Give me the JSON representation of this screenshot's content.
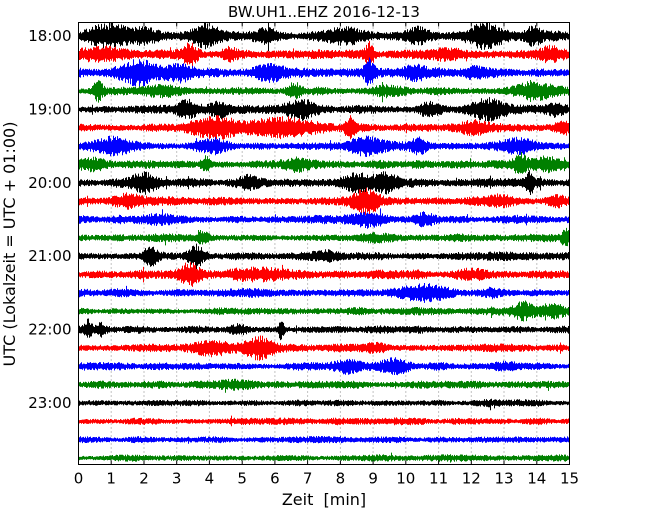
{
  "window": {
    "title": "BW.UH1..EHZ 2016-12-13"
  },
  "chart_data": {
    "type": "line",
    "subtype": "seismogram-helicorder-dayplot",
    "title": "BW.UH1..EHZ 2016-12-13",
    "xlabel": "Zeit  [min]",
    "ylabel": "UTC (Lokalzeit = UTC + 01:00)",
    "station": "BW.UH1..EHZ",
    "date": "2016-12-13",
    "xlim": [
      0,
      15
    ],
    "minutes_per_line": 15,
    "x_ticks": [
      0,
      1,
      2,
      3,
      4,
      5,
      6,
      7,
      8,
      9,
      10,
      11,
      12,
      13,
      14,
      15
    ],
    "y_tick_labels": [
      "18:00",
      "19:00",
      "20:00",
      "21:00",
      "22:00",
      "23:00"
    ],
    "grid": {
      "vertical_minute_lines": "dotted",
      "legend": "none"
    },
    "trace_color_cycle": [
      "#000000",
      "#ff0000",
      "#0000ff",
      "#008000"
    ],
    "events_format": "[minute, relative_amplitude, width_minutes]",
    "traces": [
      {
        "time": "18:00",
        "color": "#000000",
        "base_amplitude": 1.05,
        "events": [
          [
            0.9,
            1.4,
            0.5
          ],
          [
            2.1,
            0.9,
            0.3
          ],
          [
            3.9,
            1.7,
            0.3
          ],
          [
            5.7,
            1.0,
            0.25
          ],
          [
            8.2,
            1.0,
            0.4
          ],
          [
            10.4,
            0.9,
            0.25
          ],
          [
            12.4,
            1.5,
            0.4
          ],
          [
            13.9,
            1.1,
            0.2
          ]
        ]
      },
      {
        "time": "18:15",
        "color": "#ff0000",
        "base_amplitude": 1.0,
        "events": [
          [
            0.6,
            0.9,
            0.5
          ],
          [
            3.4,
            1.5,
            0.18
          ],
          [
            4.6,
            0.9,
            0.15
          ],
          [
            8.9,
            1.8,
            0.1
          ],
          [
            11.2,
            0.8,
            0.3
          ],
          [
            14.4,
            0.9,
            0.25
          ]
        ]
      },
      {
        "time": "18:30",
        "color": "#0000ff",
        "base_amplitude": 1.0,
        "events": [
          [
            1.8,
            1.6,
            0.5
          ],
          [
            3.1,
            0.9,
            0.25
          ],
          [
            5.8,
            1.0,
            0.3
          ],
          [
            8.9,
            1.9,
            0.12
          ],
          [
            10.3,
            1.0,
            0.25
          ],
          [
            12.1,
            0.7,
            0.3
          ]
        ]
      },
      {
        "time": "18:45",
        "color": "#008000",
        "base_amplitude": 0.9,
        "events": [
          [
            0.6,
            1.7,
            0.12
          ],
          [
            2.6,
            0.7,
            0.4
          ],
          [
            6.6,
            1.3,
            0.15
          ],
          [
            9.3,
            0.7,
            0.3
          ],
          [
            13.9,
            1.1,
            0.45
          ]
        ]
      },
      {
        "time": "19:00",
        "color": "#000000",
        "base_amplitude": 0.95,
        "events": [
          [
            3.3,
            1.3,
            0.2
          ],
          [
            4.3,
            1.2,
            0.2
          ],
          [
            6.8,
            1.2,
            0.3
          ],
          [
            10.7,
            1.0,
            0.25
          ],
          [
            12.5,
            1.6,
            0.4
          ],
          [
            14.6,
            0.8,
            0.2
          ]
        ]
      },
      {
        "time": "19:15",
        "color": "#ff0000",
        "base_amplitude": 1.0,
        "events": [
          [
            4.2,
            1.6,
            0.5
          ],
          [
            6.3,
            1.5,
            0.6
          ],
          [
            8.3,
            1.4,
            0.12
          ],
          [
            12.1,
            0.7,
            0.3
          ],
          [
            14.8,
            1.0,
            0.15
          ]
        ]
      },
      {
        "time": "19:30",
        "color": "#0000ff",
        "base_amplitude": 0.95,
        "events": [
          [
            1.0,
            1.1,
            0.5
          ],
          [
            4.1,
            0.8,
            0.3
          ],
          [
            8.8,
            1.5,
            0.4
          ],
          [
            10.4,
            1.0,
            0.18
          ],
          [
            13.5,
            0.8,
            0.4
          ]
        ]
      },
      {
        "time": "19:45",
        "color": "#008000",
        "base_amplitude": 0.9,
        "events": [
          [
            0.5,
            0.9,
            0.3
          ],
          [
            3.9,
            1.2,
            0.1
          ],
          [
            6.7,
            1.0,
            0.25
          ],
          [
            13.5,
            1.5,
            0.15
          ],
          [
            14.3,
            0.9,
            0.3
          ]
        ]
      },
      {
        "time": "20:00",
        "color": "#000000",
        "base_amplitude": 0.95,
        "events": [
          [
            2.0,
            1.5,
            0.3
          ],
          [
            5.2,
            0.8,
            0.2
          ],
          [
            8.5,
            1.4,
            0.35
          ],
          [
            9.4,
            1.2,
            0.25
          ],
          [
            13.8,
            1.7,
            0.08
          ]
        ]
      },
      {
        "time": "20:15",
        "color": "#ff0000",
        "base_amplitude": 0.95,
        "events": [
          [
            1.5,
            0.8,
            0.3
          ],
          [
            8.8,
            1.8,
            0.3
          ],
          [
            12.9,
            0.8,
            0.25
          ],
          [
            14.6,
            0.9,
            0.2
          ]
        ]
      },
      {
        "time": "20:30",
        "color": "#0000ff",
        "base_amplitude": 0.9,
        "events": [
          [
            2.5,
            0.7,
            0.4
          ],
          [
            8.8,
            0.9,
            0.35
          ],
          [
            10.6,
            0.8,
            0.2
          ]
        ]
      },
      {
        "time": "20:45",
        "color": "#008000",
        "base_amplitude": 0.85,
        "events": [
          [
            3.8,
            1.2,
            0.12
          ],
          [
            9.1,
            0.7,
            0.4
          ],
          [
            14.9,
            1.3,
            0.1
          ]
        ]
      },
      {
        "time": "21:00",
        "color": "#000000",
        "base_amplitude": 0.9,
        "events": [
          [
            2.2,
            1.3,
            0.18
          ],
          [
            3.6,
            1.5,
            0.18
          ],
          [
            7.6,
            0.7,
            0.3
          ]
        ]
      },
      {
        "time": "21:15",
        "color": "#ff0000",
        "base_amplitude": 0.95,
        "events": [
          [
            3.4,
            1.6,
            0.25
          ],
          [
            5.6,
            0.9,
            0.6
          ],
          [
            11.9,
            0.7,
            0.3
          ]
        ]
      },
      {
        "time": "21:30",
        "color": "#0000ff",
        "base_amplitude": 0.9,
        "events": [
          [
            10.6,
            1.3,
            0.55
          ],
          [
            12.6,
            0.7,
            0.25
          ]
        ]
      },
      {
        "time": "21:45",
        "color": "#008000",
        "base_amplitude": 0.8,
        "events": [
          [
            13.6,
            1.6,
            0.25
          ],
          [
            14.5,
            0.9,
            0.25
          ]
        ]
      },
      {
        "time": "22:00",
        "color": "#000000",
        "base_amplitude": 0.85,
        "events": [
          [
            0.3,
            1.5,
            0.08
          ],
          [
            0.7,
            1.0,
            0.08
          ],
          [
            4.9,
            0.8,
            0.2
          ],
          [
            6.2,
            1.9,
            0.06
          ]
        ]
      },
      {
        "time": "22:15",
        "color": "#ff0000",
        "base_amplitude": 0.9,
        "events": [
          [
            4.1,
            1.0,
            0.4
          ],
          [
            5.5,
            1.6,
            0.3
          ],
          [
            9.1,
            0.6,
            0.3
          ]
        ]
      },
      {
        "time": "22:30",
        "color": "#0000ff",
        "base_amplitude": 0.85,
        "events": [
          [
            8.3,
            1.2,
            0.3
          ],
          [
            9.7,
            1.1,
            0.3
          ],
          [
            13.1,
            0.6,
            0.3
          ]
        ]
      },
      {
        "time": "22:45",
        "color": "#008000",
        "base_amplitude": 0.8,
        "events": [
          [
            5.0,
            0.5,
            0.5
          ]
        ]
      },
      {
        "time": "23:00",
        "color": "#000000",
        "base_amplitude": 0.7,
        "events": [
          [
            12.5,
            0.4,
            0.3
          ]
        ]
      },
      {
        "time": "23:15",
        "color": "#ff0000",
        "base_amplitude": 0.75,
        "events": []
      },
      {
        "time": "23:30",
        "color": "#0000ff",
        "base_amplitude": 0.7,
        "events": []
      },
      {
        "time": "23:45",
        "color": "#008000",
        "base_amplitude": 0.72,
        "events": []
      }
    ]
  }
}
